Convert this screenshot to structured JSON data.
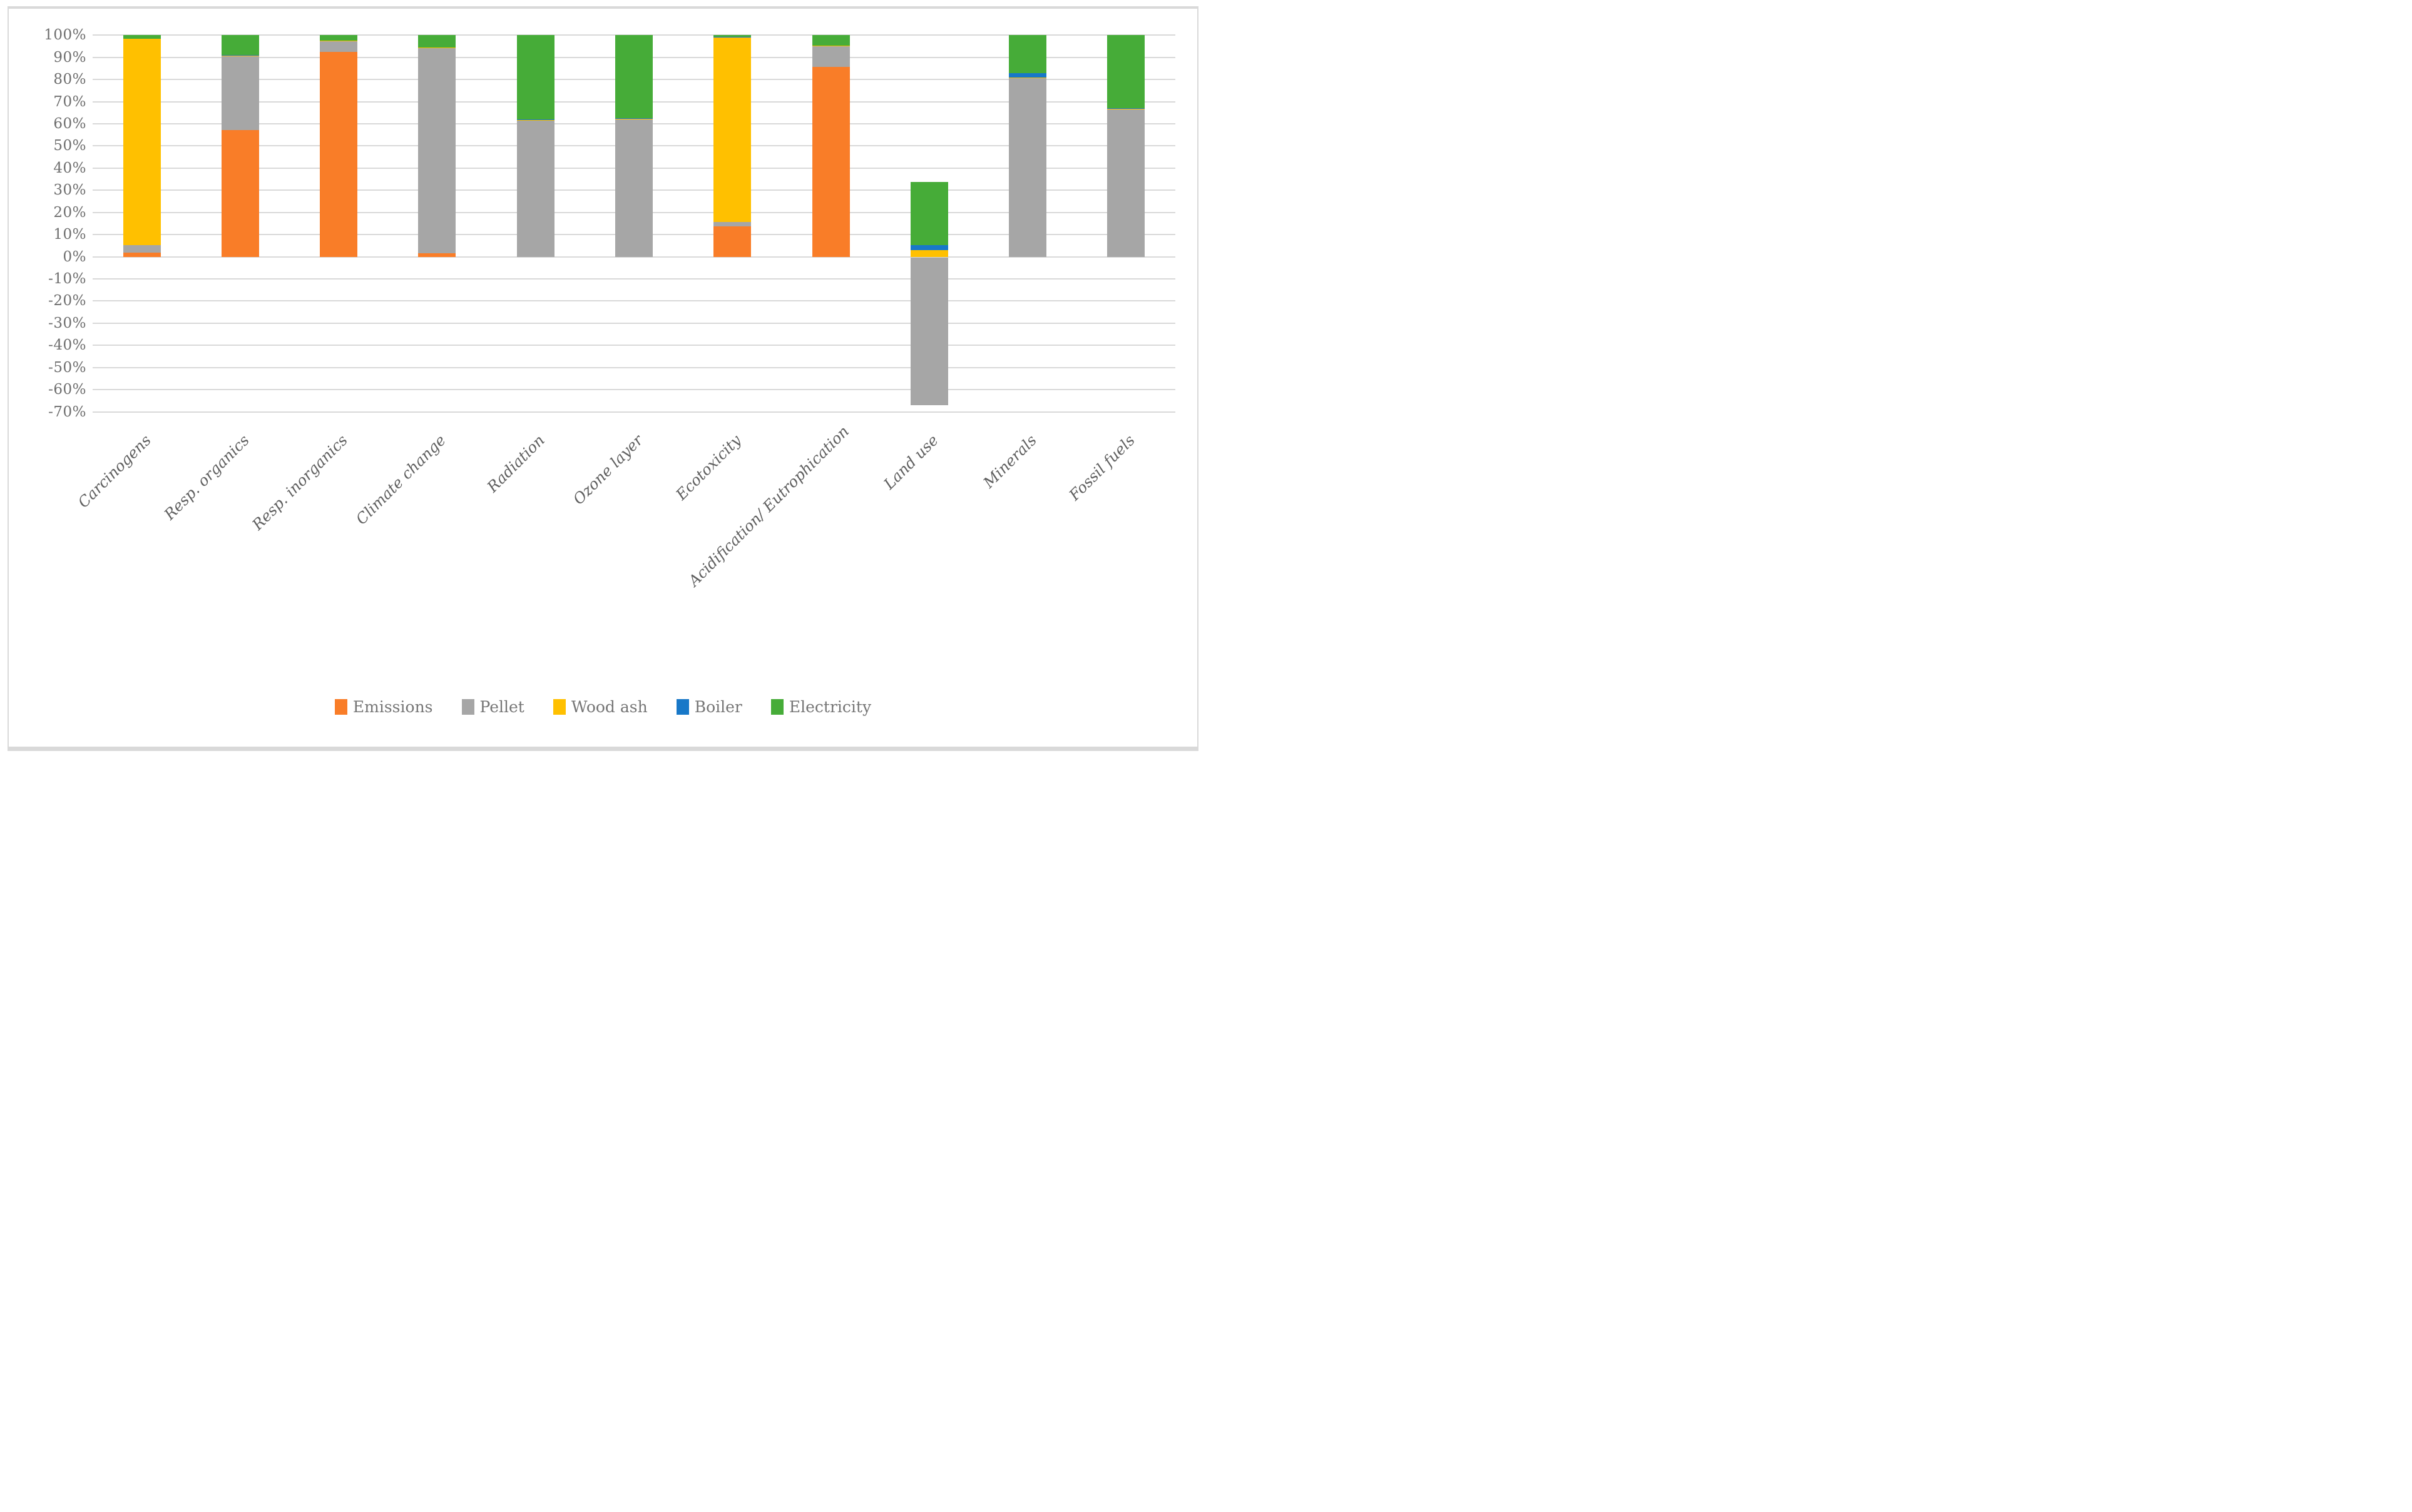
{
  "figure": {
    "background": "#ffffff",
    "border_color": "#d9d9d9"
  },
  "chart_data": {
    "type": "bar",
    "variant": "100%-stacked-column",
    "unit": "%",
    "title": "",
    "xlabel": "",
    "ylabel": "",
    "grid": true,
    "gridline_color": "#d9d9d9",
    "legend_position": "bottom",
    "categories": [
      "Carcinogens",
      "Resp. organics",
      "Resp. inorganics",
      "Climate change",
      "Radiation",
      "Ozone layer",
      "Ecotoxicity",
      "Acidification/ Eutrophication",
      "Land use",
      "Minerals",
      "Fossil fuels"
    ],
    "series": [
      {
        "name": "Emissions",
        "color": "#F97D28",
        "values": [
          1.9,
          57.3,
          92.4,
          1.5,
          0,
          0,
          13.7,
          85.6,
          0,
          0,
          0
        ]
      },
      {
        "name": "Pellet",
        "color": "#A6A6A6",
        "values": [
          3.4,
          33.2,
          4.9,
          92.6,
          61.3,
          62.0,
          2.1,
          9.3,
          -66.6,
          80.7,
          66.6
        ]
      },
      {
        "name": "Wood ash",
        "color": "#FFC000",
        "values": [
          93.2,
          0.3,
          0.3,
          0.3,
          0.3,
          0.4,
          83.1,
          0.3,
          3.1,
          0.3,
          0.3
        ]
      },
      {
        "name": "Boiler",
        "color": "#1878C8",
        "values": [
          0,
          0.3,
          0,
          0,
          0.4,
          0.1,
          0.4,
          0,
          2.1,
          2.0,
          0.3
        ]
      },
      {
        "name": "Electricity",
        "color": "#46AC38",
        "values": [
          1.5,
          8.9,
          2.4,
          5.6,
          38.0,
          37.5,
          0.7,
          4.8,
          28.6,
          17.0,
          32.8
        ]
      }
    ],
    "y_axis": {
      "min": -70,
      "max": 100,
      "step": 10,
      "tick_labels": [
        "100%",
        "90%",
        "80%",
        "70%",
        "60%",
        "50%",
        "40%",
        "30%",
        "20%",
        "10%",
        "0%",
        "-10%",
        "-20%",
        "-30%",
        "-40%",
        "-50%",
        "-60%",
        "-70%"
      ],
      "tick_color": "#6e6e6e"
    },
    "category_label_color": "#5f5f5f",
    "category_label_rotation_deg": 45,
    "legend_text_color": "#767676"
  }
}
